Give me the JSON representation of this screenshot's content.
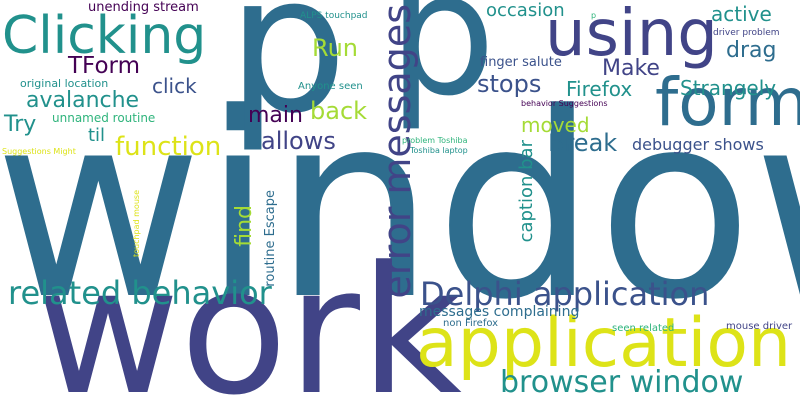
{
  "words": {
    "window": "window",
    "work": "work",
    "p1": "p",
    "p2": "p",
    "application": "application",
    "form": "form",
    "using": "using",
    "clicking": "Clicking",
    "error_messages": "error messages",
    "delphi_application": "Delphi application",
    "related_behavior": "related behavior",
    "browser_window": "browser window",
    "avalanche": "avalanche",
    "tform": "TForm",
    "function": "function",
    "strangely": "Strangely",
    "break": "Break",
    "stops": "stops",
    "firefox": "Firefox",
    "active": "active",
    "drag": "drag",
    "make": "Make",
    "run": "Run",
    "back": "back",
    "main": "main",
    "allows": "allows",
    "click": "click",
    "try": "Try",
    "til": "til",
    "moved": "moved",
    "find": "find",
    "occasion": "occasion",
    "caption_bar": "caption bar",
    "debugger_shows": "debugger shows",
    "unending_stream": "unending stream",
    "messages_complaining": "messages complaining",
    "finger_salute": "finger salute",
    "routine_escape": "routine Escape",
    "unnamed_routine": "unnamed routine",
    "original_location": "original location",
    "anyone_seen": "Anyone seen",
    "alps_touchpad": "ALPS touchpad",
    "driver_problem": "driver problem",
    "behavior_suggestions": "behavior Suggestions",
    "suggestions_might": "Suggestions Might",
    "touchpad_mouse": "touchpad mouse",
    "problem_toshiba": "problem Toshiba",
    "toshiba_laptop": "Toshiba laptop",
    "non_firefox": "non Firefox",
    "seen_related": "seen related",
    "mouse_driver": "mouse driver",
    "p_small": "p"
  },
  "colors": {
    "background": "#ffffff",
    "dark_blue": "#414487",
    "blue": "#2e6d8e",
    "teal": "#21918c",
    "green": "#2fb47c",
    "yellow_green": "#a5db36",
    "yellow": "#dde318",
    "purple": "#440154",
    "indigo": "#3b528b"
  }
}
